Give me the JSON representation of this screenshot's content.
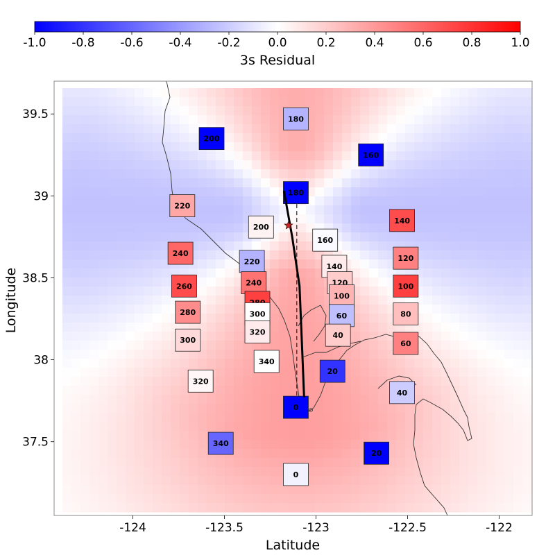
{
  "chart_data": {
    "type": "heatmap",
    "title": "",
    "xlabel": "Latitude",
    "ylabel": "Longitude",
    "xlim": [
      -124.43,
      -121.82
    ],
    "ylim": [
      37.05,
      39.7
    ],
    "x_ticks": [
      -124,
      -123.5,
      -123,
      -122.5,
      -122
    ],
    "x_tick_labels": [
      "-124",
      "-123.5",
      "-123",
      "-122.5",
      "-122"
    ],
    "y_ticks": [
      37.5,
      38,
      38.5,
      39,
      39.5
    ],
    "y_tick_labels": [
      "37.5",
      "38",
      "38.5",
      "39",
      "39.5"
    ],
    "colorbar": {
      "label": "3s Residual",
      "range": [
        -1.0,
        1.0
      ],
      "ticks": [
        -1.0,
        -0.8,
        -0.6,
        -0.4,
        -0.2,
        0.0,
        0.2,
        0.4,
        0.6,
        0.8,
        1.0
      ],
      "tick_labels": [
        "-1.0",
        "-0.8",
        "-0.6",
        "-0.4",
        "-0.2",
        "0.0",
        "0.2",
        "0.4",
        "0.6",
        "0.8",
        "1.0"
      ],
      "colors": {
        "low": "#0000ff",
        "mid": "#ffffff",
        "high": "#ff0000"
      }
    },
    "grid": false,
    "fault_trace": [
      [
        -123.175,
        39.03
      ],
      [
        -123.13,
        38.75
      ],
      [
        -123.09,
        38.45
      ],
      [
        -123.075,
        38.05
      ],
      [
        -123.065,
        37.77
      ]
    ],
    "fault_projection": [
      [
        -123.105,
        38.95
      ],
      [
        -123.105,
        37.77
      ]
    ],
    "epicenter": {
      "x": -123.15,
      "y": 38.82
    },
    "stations": [
      {
        "label": "180",
        "x": -123.11,
        "y": 39.47,
        "value": -0.3
      },
      {
        "label": "200",
        "x": -123.57,
        "y": 39.35,
        "value": -1.0
      },
      {
        "label": "160",
        "x": -122.7,
        "y": 39.25,
        "value": -1.0
      },
      {
        "label": "180",
        "x": -123.11,
        "y": 39.02,
        "value": -1.0
      },
      {
        "label": "220",
        "x": -123.73,
        "y": 38.94,
        "value": 0.35
      },
      {
        "label": "140",
        "x": -122.53,
        "y": 38.85,
        "value": 0.7
      },
      {
        "label": "200",
        "x": -123.3,
        "y": 38.81,
        "value": 0.05
      },
      {
        "label": "160",
        "x": -122.95,
        "y": 38.73,
        "value": -0.02
      },
      {
        "label": "240",
        "x": -123.74,
        "y": 38.65,
        "value": 0.6
      },
      {
        "label": "120",
        "x": -122.51,
        "y": 38.62,
        "value": 0.5
      },
      {
        "label": "220",
        "x": -123.35,
        "y": 38.6,
        "value": -0.3
      },
      {
        "label": "140",
        "x": -122.9,
        "y": 38.57,
        "value": 0.08
      },
      {
        "label": "260",
        "x": -123.72,
        "y": 38.45,
        "value": 0.7
      },
      {
        "label": "240",
        "x": -123.34,
        "y": 38.47,
        "value": 0.55
      },
      {
        "label": "120",
        "x": -122.87,
        "y": 38.47,
        "value": 0.2
      },
      {
        "label": "100",
        "x": -122.51,
        "y": 38.45,
        "value": 0.75
      },
      {
        "label": "100",
        "x": -122.86,
        "y": 38.39,
        "value": 0.3
      },
      {
        "label": "280",
        "x": -123.32,
        "y": 38.35,
        "value": 0.75
      },
      {
        "label": "280",
        "x": -123.7,
        "y": 38.29,
        "value": 0.45
      },
      {
        "label": "300",
        "x": -123.32,
        "y": 38.28,
        "value": 0.0
      },
      {
        "label": "60",
        "x": -122.86,
        "y": 38.27,
        "value": -0.25
      },
      {
        "label": "80",
        "x": -122.51,
        "y": 38.28,
        "value": 0.25
      },
      {
        "label": "320",
        "x": -123.32,
        "y": 38.17,
        "value": 0.08
      },
      {
        "label": "40",
        "x": -122.88,
        "y": 38.15,
        "value": 0.2
      },
      {
        "label": "300",
        "x": -123.7,
        "y": 38.12,
        "value": 0.15
      },
      {
        "label": "60",
        "x": -122.51,
        "y": 38.1,
        "value": 0.5
      },
      {
        "label": "340",
        "x": -123.27,
        "y": 37.99,
        "value": 0.0
      },
      {
        "label": "20",
        "x": -122.91,
        "y": 37.93,
        "value": -0.8
      },
      {
        "label": "320",
        "x": -123.63,
        "y": 37.87,
        "value": 0.03
      },
      {
        "label": "40",
        "x": -122.53,
        "y": 37.8,
        "value": -0.2
      },
      {
        "label": "0",
        "x": -123.11,
        "y": 37.71,
        "value": -1.0
      },
      {
        "label": "340",
        "x": -123.52,
        "y": 37.49,
        "value": -0.6
      },
      {
        "label": "20",
        "x": -122.67,
        "y": 37.43,
        "value": -1.0
      },
      {
        "label": "0",
        "x": -123.11,
        "y": 37.3,
        "value": -0.05
      }
    ]
  }
}
